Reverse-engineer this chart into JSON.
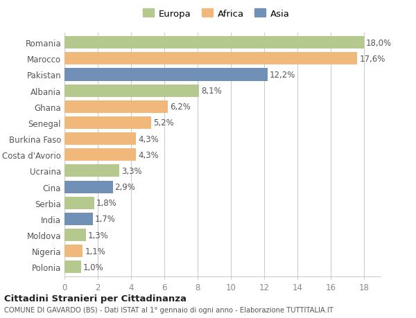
{
  "countries": [
    "Romania",
    "Marocco",
    "Pakistan",
    "Albania",
    "Ghana",
    "Senegal",
    "Burkina Faso",
    "Costa d'Avorio",
    "Ucraina",
    "Cina",
    "Serbia",
    "India",
    "Moldova",
    "Nigeria",
    "Polonia"
  ],
  "values": [
    18.0,
    17.6,
    12.2,
    8.1,
    6.2,
    5.2,
    4.3,
    4.3,
    3.3,
    2.9,
    1.8,
    1.7,
    1.3,
    1.1,
    1.0
  ],
  "labels": [
    "18,0%",
    "17,6%",
    "12,2%",
    "8,1%",
    "6,2%",
    "5,2%",
    "4,3%",
    "4,3%",
    "3,3%",
    "2,9%",
    "1,8%",
    "1,7%",
    "1,3%",
    "1,1%",
    "1,0%"
  ],
  "continents": [
    "Europa",
    "Africa",
    "Asia",
    "Europa",
    "Africa",
    "Africa",
    "Africa",
    "Africa",
    "Europa",
    "Asia",
    "Europa",
    "Asia",
    "Europa",
    "Africa",
    "Europa"
  ],
  "colors": {
    "Europa": "#b5c98e",
    "Africa": "#f0b87a",
    "Asia": "#7090b8"
  },
  "title": "Cittadini Stranieri per Cittadinanza",
  "subtitle": "COMUNE DI GAVARDO (BS) - Dati ISTAT al 1° gennaio di ogni anno - Elaborazione TUTTITALIA.IT",
  "xlim": [
    0,
    19
  ],
  "xticks": [
    0,
    2,
    4,
    6,
    8,
    10,
    12,
    14,
    16,
    18
  ],
  "background_color": "#ffffff",
  "grid_color": "#cccccc",
  "label_fontsize": 8.5,
  "tick_fontsize": 8.5,
  "bar_height": 0.78
}
